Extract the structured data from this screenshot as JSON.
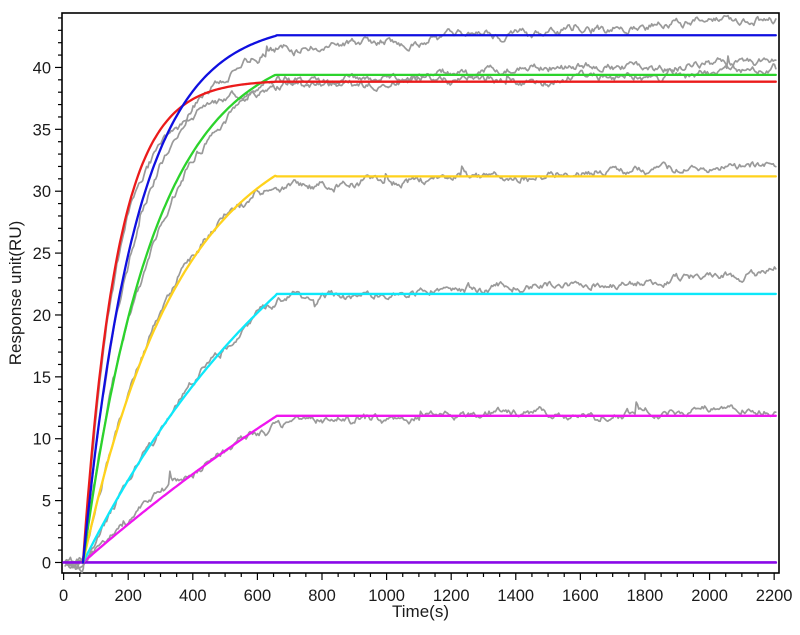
{
  "chart_data": {
    "type": "line",
    "title": "",
    "xlabel": "Time(s)",
    "ylabel": "Response unit(RU)",
    "background": "#ffffff",
    "frame_color": "#000000",
    "tick_label_color": "#1b1b1b",
    "data_color": "#9a9a9a",
    "grid": false,
    "legend": "none",
    "x_axis": {
      "min": -5,
      "max": 2215,
      "major_ticks": [
        0,
        200,
        400,
        600,
        800,
        1000,
        1200,
        1400,
        1600,
        1800,
        2000,
        2200
      ],
      "minor_step": 50,
      "minor_min": 50,
      "minor_max": 2200
    },
    "y_axis": {
      "min": -0.85,
      "max": 44.4,
      "major_ticks": [
        0,
        5,
        10,
        15,
        20,
        25,
        30,
        35,
        40
      ],
      "minor_step": 1,
      "minor_min": 1,
      "minor_max": 44
    },
    "association_start_s": 60,
    "association_end_s": 660,
    "run_end_s": 2205,
    "series_fit": [
      {
        "name": "blue-fit",
        "color": "#0f0fe0",
        "t0": 60,
        "t1": 660,
        "A": 43.77,
        "k": 0.006,
        "plateau": 42.6,
        "points": [
          [
            60,
            0
          ],
          [
            150,
            18.3
          ],
          [
            250,
            29.8
          ],
          [
            350,
            36.1
          ],
          [
            450,
            39.6
          ],
          [
            550,
            41.5
          ],
          [
            660,
            42.6
          ],
          [
            1000,
            42.6
          ],
          [
            1500,
            42.6
          ],
          [
            2200,
            42.6
          ]
        ]
      },
      {
        "name": "red-fit",
        "color": "#eb1b1b",
        "t0": 60,
        "t1": 660,
        "A": 38.98,
        "k": 0.0095,
        "plateau": 38.85,
        "points": [
          [
            60,
            0
          ],
          [
            150,
            22.4
          ],
          [
            250,
            32.5
          ],
          [
            350,
            36.5
          ],
          [
            450,
            38.0
          ],
          [
            550,
            38.6
          ],
          [
            660,
            38.85
          ],
          [
            1000,
            38.85
          ],
          [
            1500,
            38.85
          ],
          [
            2200,
            38.85
          ]
        ]
      },
      {
        "name": "green-fit",
        "color": "#2cd32c",
        "t0": 60,
        "t1": 660,
        "A": 42.3,
        "k": 0.0045,
        "plateau": 39.4,
        "points": [
          [
            60,
            0
          ],
          [
            150,
            14.1
          ],
          [
            250,
            24.3
          ],
          [
            350,
            30.8
          ],
          [
            450,
            35.0
          ],
          [
            550,
            37.6
          ],
          [
            660,
            39.4
          ],
          [
            1000,
            39.4
          ],
          [
            1500,
            39.4
          ],
          [
            2200,
            39.4
          ]
        ]
      },
      {
        "name": "yellow-fit",
        "color": "#ffd21c",
        "t0": 60,
        "t1": 660,
        "A": 36.35,
        "k": 0.0033,
        "plateau": 31.2,
        "points": [
          [
            60,
            0
          ],
          [
            150,
            9.3
          ],
          [
            250,
            16.9
          ],
          [
            350,
            22.4
          ],
          [
            450,
            26.3
          ],
          [
            550,
            29.2
          ],
          [
            660,
            31.2
          ],
          [
            1000,
            31.2
          ],
          [
            1500,
            31.2
          ],
          [
            2200,
            31.2
          ]
        ]
      },
      {
        "name": "cyan-fit",
        "color": "#0de8fa",
        "t0": 60,
        "t1": 660,
        "A": 40.0,
        "k": 0.0013,
        "plateau": 21.7,
        "points": [
          [
            60,
            0
          ],
          [
            150,
            4.4
          ],
          [
            250,
            8.8
          ],
          [
            350,
            12.6
          ],
          [
            450,
            15.9
          ],
          [
            550,
            18.8
          ],
          [
            660,
            21.7
          ],
          [
            1000,
            21.7
          ],
          [
            1500,
            21.7
          ],
          [
            2200,
            21.7
          ]
        ]
      },
      {
        "name": "magenta-fit",
        "color": "#ef16ef",
        "t0": 60,
        "t1": 660,
        "A": 45.7,
        "k": 0.0005,
        "plateau": 11.85,
        "points": [
          [
            60,
            0
          ],
          [
            150,
            2.0
          ],
          [
            250,
            4.1
          ],
          [
            350,
            6.2
          ],
          [
            450,
            8.1
          ],
          [
            550,
            9.9
          ],
          [
            660,
            11.85
          ],
          [
            1000,
            11.85
          ],
          [
            1500,
            11.85
          ],
          [
            2200,
            11.85
          ]
        ]
      },
      {
        "name": "violet-fit",
        "color": "#8a08e8",
        "t0": 0,
        "t1": 660,
        "A": 0,
        "k": 0,
        "plateau": 0,
        "points": [
          [
            0,
            0
          ],
          [
            660,
            0
          ],
          [
            2200,
            0
          ]
        ]
      }
    ],
    "series_measured": [
      {
        "name": "blue-data",
        "ref": "blue-fit",
        "seed": 11,
        "off_assoc": -1.6,
        "off_kink": -0.9,
        "off_end": 1.2,
        "key_points": [
          [
            60,
            0
          ],
          [
            660,
            41.7
          ],
          [
            2200,
            43.8
          ]
        ]
      },
      {
        "name": "red-data",
        "ref": "red-fit",
        "seed": 22,
        "off_assoc": -1.3,
        "off_kink": -0.4,
        "off_end": 0.9,
        "key_points": [
          [
            60,
            0
          ],
          [
            660,
            38.4
          ],
          [
            2200,
            39.7
          ]
        ]
      },
      {
        "name": "green-data",
        "ref": "green-fit",
        "seed": 33,
        "off_assoc": -0.9,
        "off_kink": -0.6,
        "off_end": 1.1,
        "key_points": [
          [
            60,
            0
          ],
          [
            660,
            38.8
          ],
          [
            2200,
            40.4
          ]
        ]
      },
      {
        "name": "yellow-data",
        "ref": "yellow-fit",
        "seed": 44,
        "off_assoc": 0.4,
        "off_kink": -0.7,
        "off_end": 1.0,
        "key_points": [
          [
            60,
            0
          ],
          [
            660,
            30.5
          ],
          [
            2200,
            32.2
          ]
        ]
      },
      {
        "name": "cyan-data",
        "ref": "cyan-fit",
        "seed": 55,
        "off_assoc": 0.3,
        "off_kink": -0.4,
        "off_end": 1.6,
        "key_points": [
          [
            60,
            0
          ],
          [
            660,
            21.3
          ],
          [
            2200,
            23.3
          ]
        ]
      },
      {
        "name": "magenta-data",
        "ref": "magenta-fit",
        "seed": 7,
        "off_assoc": 0.2,
        "off_kink": -0.55,
        "off_end": 0.65,
        "key_points": [
          [
            60,
            0
          ],
          [
            660,
            11.3
          ],
          [
            2200,
            12.5
          ]
        ]
      }
    ],
    "noise": {
      "amp_fast": 0.22,
      "amp_slow": 0.07,
      "spike_prob": 0.0035,
      "baseline_start_s": 5
    }
  }
}
